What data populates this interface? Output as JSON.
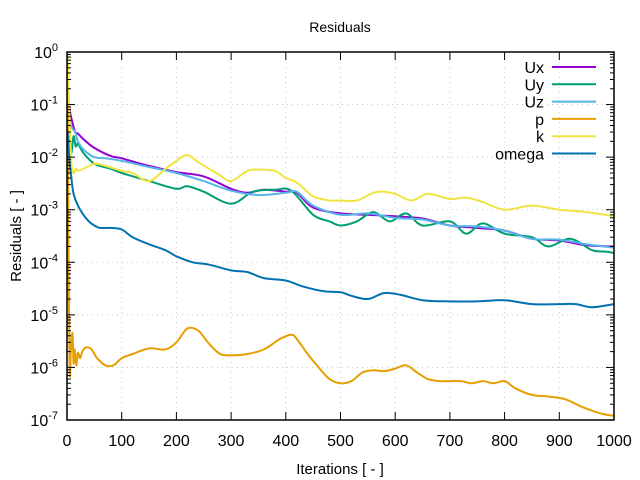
{
  "chart_data": {
    "type": "line",
    "title": "Residuals",
    "xlabel": "Iterations [ - ]",
    "ylabel": "Residuals [ - ]",
    "xlim": [
      0,
      1000
    ],
    "ylim": [
      1e-07,
      1
    ],
    "yscale": "log",
    "grid": true,
    "legend_position": "top-right",
    "x_ticks": [
      0,
      100,
      200,
      300,
      400,
      500,
      600,
      700,
      800,
      900,
      1000
    ],
    "x_tick_labels": [
      "0",
      "100",
      "200",
      "300",
      "400",
      "500",
      "600",
      "700",
      "800",
      "900",
      "1000"
    ],
    "y_ticks": [
      1,
      0.1,
      0.01,
      0.001,
      0.0001,
      1e-05,
      1e-06,
      1e-07
    ],
    "y_tick_labels": [
      {
        "base": "10",
        "exp": "0"
      },
      {
        "base": "10",
        "exp": "-1"
      },
      {
        "base": "10",
        "exp": "-2"
      },
      {
        "base": "10",
        "exp": "-3"
      },
      {
        "base": "10",
        "exp": "-4"
      },
      {
        "base": "10",
        "exp": "-5"
      },
      {
        "base": "10",
        "exp": "-6"
      },
      {
        "base": "10",
        "exp": "-7"
      }
    ],
    "series": [
      {
        "name": "Ux",
        "color": "#9400d3",
        "x": [
          1,
          5,
          10,
          15,
          20,
          30,
          50,
          80,
          100,
          150,
          200,
          250,
          300,
          330,
          360,
          400,
          420,
          450,
          500,
          550,
          600,
          650,
          700,
          750,
          800,
          850,
          900,
          950,
          1000
        ],
        "y": [
          0.25,
          0.08,
          0.045,
          0.03,
          0.028,
          0.022,
          0.015,
          0.0105,
          0.0095,
          0.0068,
          0.0052,
          0.0043,
          0.0025,
          0.0021,
          0.0024,
          0.0022,
          0.0021,
          0.0011,
          0.00085,
          0.0008,
          0.00075,
          0.00068,
          0.0005,
          0.00045,
          0.0004,
          0.00028,
          0.00026,
          0.00021,
          0.0002
        ]
      },
      {
        "name": "Uy",
        "color": "#009e73",
        "x": [
          1,
          5,
          8,
          12,
          16,
          20,
          30,
          50,
          80,
          100,
          150,
          200,
          220,
          250,
          300,
          340,
          380,
          410,
          450,
          480,
          500,
          530,
          560,
          590,
          620,
          650,
          700,
          730,
          760,
          800,
          850,
          880,
          920,
          960,
          985,
          1000
        ],
        "y": [
          0.03,
          0.02,
          0.012,
          0.025,
          0.016,
          0.018,
          0.012,
          0.0075,
          0.006,
          0.005,
          0.0035,
          0.0025,
          0.0028,
          0.0022,
          0.0013,
          0.0022,
          0.0024,
          0.0023,
          0.0008,
          0.0006,
          0.0005,
          0.0006,
          0.0009,
          0.0006,
          0.00085,
          0.0005,
          0.0006,
          0.00035,
          0.00055,
          0.00035,
          0.0003,
          0.0002,
          0.00028,
          0.00017,
          0.00016,
          0.00015
        ]
      },
      {
        "name": "Uz",
        "color": "#56b4e9",
        "x": [
          1,
          5,
          10,
          15,
          20,
          30,
          50,
          70,
          100,
          150,
          200,
          250,
          300,
          350,
          400,
          420,
          450,
          500,
          550,
          600,
          650,
          700,
          750,
          800,
          850,
          900,
          950,
          1000
        ],
        "y": [
          0.3,
          0.05,
          0.035,
          0.03,
          0.02,
          0.014,
          0.01,
          0.0095,
          0.0085,
          0.0065,
          0.005,
          0.0035,
          0.0023,
          0.0019,
          0.0021,
          0.0022,
          0.0012,
          0.0008,
          0.00085,
          0.0007,
          0.00065,
          0.0005,
          0.00048,
          0.0004,
          0.00028,
          0.00027,
          0.00022,
          0.00019
        ]
      },
      {
        "name": "p",
        "color": "#e69f00",
        "x": [
          1,
          3,
          5,
          7,
          10,
          12,
          14,
          17,
          20,
          24,
          28,
          35,
          45,
          55,
          70,
          85,
          100,
          120,
          150,
          180,
          200,
          220,
          240,
          260,
          280,
          300,
          330,
          360,
          390,
          410,
          420,
          440,
          460,
          480,
          500,
          520,
          540,
          560,
          580,
          600,
          620,
          640,
          660,
          680,
          700,
          720,
          740,
          760,
          780,
          800,
          820,
          850,
          880,
          910,
          940,
          960,
          980,
          1000
        ],
        "y": [
          0.6,
          0.0001,
          8e-07,
          2e-06,
          4.5e-06,
          1.2e-06,
          2.2e-06,
          1.1e-06,
          1.9e-06,
          1.5e-06,
          2e-06,
          2.4e-06,
          2.2e-06,
          1.5e-06,
          1.1e-06,
          1.1e-06,
          1.5e-06,
          1.8e-06,
          2.3e-06,
          2.2e-06,
          3e-06,
          5.5e-06,
          5e-06,
          2.8e-06,
          1.8e-06,
          1.7e-06,
          1.8e-06,
          2.2e-06,
          3.5e-06,
          4.2e-06,
          3.5e-06,
          1.8e-06,
          1e-06,
          6e-07,
          5e-07,
          5.5e-07,
          8e-07,
          8.8e-07,
          8.5e-07,
          9.5e-07,
          1.1e-06,
          8e-07,
          6e-07,
          5.5e-07,
          5.5e-07,
          5.5e-07,
          5e-07,
          5.5e-07,
          5e-07,
          5.5e-07,
          4e-07,
          3e-07,
          2.8e-07,
          2.5e-07,
          1.8e-07,
          1.5e-07,
          1.3e-07,
          1.2e-07
        ]
      },
      {
        "name": "k",
        "color": "#f0e442",
        "x": [
          1,
          4,
          8,
          12,
          16,
          20,
          30,
          50,
          70,
          100,
          120,
          150,
          180,
          200,
          220,
          240,
          260,
          280,
          300,
          330,
          350,
          380,
          400,
          420,
          450,
          480,
          500,
          530,
          560,
          580,
          600,
          630,
          660,
          700,
          730,
          760,
          800,
          850,
          900,
          950,
          1000
        ],
        "y": [
          0.9,
          0.1,
          0.008,
          0.005,
          0.006,
          0.0055,
          0.006,
          0.0075,
          0.0068,
          0.0055,
          0.005,
          0.0035,
          0.006,
          0.0085,
          0.011,
          0.008,
          0.006,
          0.0045,
          0.0035,
          0.0055,
          0.0058,
          0.0055,
          0.004,
          0.0033,
          0.0018,
          0.0015,
          0.0015,
          0.0015,
          0.0021,
          0.0022,
          0.002,
          0.0015,
          0.002,
          0.0016,
          0.0017,
          0.0014,
          0.001,
          0.0012,
          0.001,
          0.0009,
          0.00075
        ]
      },
      {
        "name": "omega",
        "color": "#0072b2",
        "x": [
          1,
          4,
          8,
          12,
          20,
          30,
          40,
          50,
          60,
          80,
          100,
          120,
          150,
          180,
          200,
          230,
          260,
          300,
          330,
          360,
          400,
          430,
          470,
          500,
          520,
          550,
          580,
          610,
          650,
          700,
          750,
          800,
          850,
          900,
          930,
          960,
          1000
        ],
        "y": [
          0.03,
          0.01,
          0.004,
          0.002,
          0.0012,
          0.0008,
          0.0006,
          0.0005,
          0.00045,
          0.00045,
          0.00042,
          0.0003,
          0.00022,
          0.00017,
          0.00013,
          0.0001,
          9e-05,
          7e-05,
          6.5e-05,
          5e-05,
          4.5e-05,
          3.5e-05,
          2.8e-05,
          2.7e-05,
          2.3e-05,
          2e-05,
          2.6e-05,
          2.4e-05,
          1.9e-05,
          1.8e-05,
          1.8e-05,
          1.9e-05,
          1.6e-05,
          1.6e-05,
          1.6e-05,
          1.4e-05,
          1.6e-05
        ]
      }
    ]
  }
}
